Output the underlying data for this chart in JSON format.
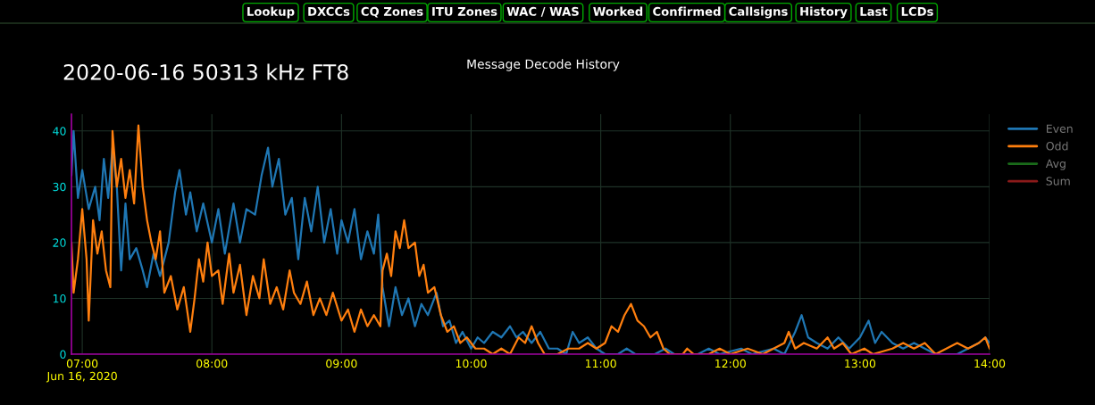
{
  "chart_data": {
    "type": "line",
    "title": "Message Decode History",
    "subtitle": "2020-06-16 50313 kHz FT8",
    "annotations": [
      "Lookup",
      "DXCCs",
      "CQ Zones",
      "ITU Zones",
      "WAC / WAS",
      "Worked",
      "Confirmed",
      "Callsigns",
      "History",
      "Last",
      "LCDs"
    ],
    "xlim": [
      "2020-06-16T06:55",
      "2020-06-16T14:00"
    ],
    "xticks": [
      {
        "value": "2020-06-16T07:00",
        "label": "07:00\nJun 16, 2020"
      },
      {
        "value": "2020-06-16T08:00",
        "label": "08:00"
      },
      {
        "value": "2020-06-16T09:00",
        "label": "09:00"
      },
      {
        "value": "2020-06-16T10:00",
        "label": "10:00"
      },
      {
        "value": "2020-06-16T11:00",
        "label": "11:00"
      },
      {
        "value": "2020-06-16T12:00",
        "label": "12:00"
      },
      {
        "value": "2020-06-16T13:00",
        "label": "13:00"
      },
      {
        "value": "2020-06-16T14:00",
        "label": "14:00"
      }
    ],
    "ylim": [
      0,
      43
    ],
    "yticks": [
      0,
      10,
      20,
      30,
      40
    ],
    "grid": true,
    "legend": "top right",
    "marker": "none",
    "line_style": "solid",
    "series": [
      {
        "name": "Even",
        "color": "#1f77b4",
        "x": [
          "2020-06-16T06:55",
          "2020-06-16T06:56",
          "2020-06-16T06:58",
          "2020-06-16T07:00",
          "2020-06-16T07:03",
          "2020-06-16T07:06",
          "2020-06-16T07:08",
          "2020-06-16T07:10",
          "2020-06-16T07:12",
          "2020-06-16T07:14",
          "2020-06-16T07:16",
          "2020-06-16T07:18",
          "2020-06-16T07:20",
          "2020-06-16T07:22",
          "2020-06-16T07:25",
          "2020-06-16T07:28",
          "2020-06-16T07:30",
          "2020-06-16T07:33",
          "2020-06-16T07:36",
          "2020-06-16T07:40",
          "2020-06-16T07:43",
          "2020-06-16T07:45",
          "2020-06-16T07:48",
          "2020-06-16T07:50",
          "2020-06-16T07:53",
          "2020-06-16T07:56",
          "2020-06-16T08:00",
          "2020-06-16T08:03",
          "2020-06-16T08:06",
          "2020-06-16T08:10",
          "2020-06-16T08:13",
          "2020-06-16T08:16",
          "2020-06-16T08:20",
          "2020-06-16T08:23",
          "2020-06-16T08:26",
          "2020-06-16T08:28",
          "2020-06-16T08:31",
          "2020-06-16T08:34",
          "2020-06-16T08:37",
          "2020-06-16T08:40",
          "2020-06-16T08:43",
          "2020-06-16T08:46",
          "2020-06-16T08:49",
          "2020-06-16T08:52",
          "2020-06-16T08:55",
          "2020-06-16T08:58",
          "2020-06-16T09:00",
          "2020-06-16T09:03",
          "2020-06-16T09:06",
          "2020-06-16T09:09",
          "2020-06-16T09:12",
          "2020-06-16T09:15",
          "2020-06-16T09:17",
          "2020-06-16T09:19",
          "2020-06-16T09:22",
          "2020-06-16T09:25",
          "2020-06-16T09:28",
          "2020-06-16T09:31",
          "2020-06-16T09:34",
          "2020-06-16T09:37",
          "2020-06-16T09:40",
          "2020-06-16T09:44",
          "2020-06-16T09:47",
          "2020-06-16T09:50",
          "2020-06-16T09:53",
          "2020-06-16T09:56",
          "2020-06-16T10:00",
          "2020-06-16T10:03",
          "2020-06-16T10:06",
          "2020-06-16T10:10",
          "2020-06-16T10:14",
          "2020-06-16T10:18",
          "2020-06-16T10:21",
          "2020-06-16T10:24",
          "2020-06-16T10:28",
          "2020-06-16T10:32",
          "2020-06-16T10:36",
          "2020-06-16T10:40",
          "2020-06-16T10:44",
          "2020-06-16T10:47",
          "2020-06-16T10:50",
          "2020-06-16T10:54",
          "2020-06-16T10:58",
          "2020-06-16T11:02",
          "2020-06-16T11:08",
          "2020-06-16T11:12",
          "2020-06-16T11:16",
          "2020-06-16T11:25",
          "2020-06-16T11:30",
          "2020-06-16T11:34",
          "2020-06-16T11:45",
          "2020-06-16T11:50",
          "2020-06-16T11:55",
          "2020-06-16T12:05",
          "2020-06-16T12:10",
          "2020-06-16T12:20",
          "2020-06-16T12:25",
          "2020-06-16T12:30",
          "2020-06-16T12:33",
          "2020-06-16T12:36",
          "2020-06-16T12:40",
          "2020-06-16T12:45",
          "2020-06-16T12:50",
          "2020-06-16T12:55",
          "2020-06-16T13:00",
          "2020-06-16T13:04",
          "2020-06-16T13:07",
          "2020-06-16T13:10",
          "2020-06-16T13:15",
          "2020-06-16T13:20",
          "2020-06-16T13:25",
          "2020-06-16T13:30",
          "2020-06-16T13:35",
          "2020-06-16T13:45",
          "2020-06-16T13:50",
          "2020-06-16T13:55",
          "2020-06-16T13:58",
          "2020-06-16T14:00"
        ],
        "values": [
          32,
          40,
          28,
          33,
          26,
          30,
          24,
          35,
          28,
          37,
          30,
          15,
          27,
          17,
          19,
          15,
          12,
          18,
          14,
          20,
          29,
          33,
          25,
          29,
          22,
          27,
          20,
          26,
          18,
          27,
          20,
          26,
          25,
          32,
          37,
          30,
          35,
          25,
          28,
          17,
          28,
          22,
          30,
          20,
          26,
          18,
          24,
          20,
          26,
          17,
          22,
          18,
          25,
          12,
          5,
          12,
          7,
          10,
          5,
          9,
          7,
          11,
          5,
          6,
          2,
          4,
          1,
          3,
          2,
          4,
          3,
          5,
          3,
          4,
          2,
          4,
          1,
          1,
          0,
          4,
          2,
          3,
          1,
          0,
          0,
          1,
          0,
          0,
          1,
          0,
          0,
          1,
          0,
          1,
          0,
          1,
          0,
          4,
          7,
          3,
          2,
          1,
          3,
          1,
          3,
          6,
          2,
          4,
          2,
          1,
          2,
          1,
          0,
          0,
          1,
          2,
          3,
          2
        ]
      },
      {
        "name": "Odd",
        "color": "#ff7f0e",
        "x": [
          "2020-06-16T06:55",
          "2020-06-16T06:56",
          "2020-06-16T06:58",
          "2020-06-16T07:00",
          "2020-06-16T07:02",
          "2020-06-16T07:03",
          "2020-06-16T07:05",
          "2020-06-16T07:07",
          "2020-06-16T07:09",
          "2020-06-16T07:11",
          "2020-06-16T07:13",
          "2020-06-16T07:14",
          "2020-06-16T07:16",
          "2020-06-16T07:18",
          "2020-06-16T07:20",
          "2020-06-16T07:22",
          "2020-06-16T07:24",
          "2020-06-16T07:26",
          "2020-06-16T07:28",
          "2020-06-16T07:30",
          "2020-06-16T07:32",
          "2020-06-16T07:34",
          "2020-06-16T07:36",
          "2020-06-16T07:38",
          "2020-06-16T07:41",
          "2020-06-16T07:44",
          "2020-06-16T07:47",
          "2020-06-16T07:50",
          "2020-06-16T07:52",
          "2020-06-16T07:54",
          "2020-06-16T07:56",
          "2020-06-16T07:58",
          "2020-06-16T08:00",
          "2020-06-16T08:03",
          "2020-06-16T08:05",
          "2020-06-16T08:08",
          "2020-06-16T08:10",
          "2020-06-16T08:13",
          "2020-06-16T08:16",
          "2020-06-16T08:19",
          "2020-06-16T08:22",
          "2020-06-16T08:24",
          "2020-06-16T08:27",
          "2020-06-16T08:30",
          "2020-06-16T08:33",
          "2020-06-16T08:36",
          "2020-06-16T08:38",
          "2020-06-16T08:41",
          "2020-06-16T08:44",
          "2020-06-16T08:47",
          "2020-06-16T08:50",
          "2020-06-16T08:53",
          "2020-06-16T08:56",
          "2020-06-16T09:00",
          "2020-06-16T09:03",
          "2020-06-16T09:06",
          "2020-06-16T09:09",
          "2020-06-16T09:12",
          "2020-06-16T09:15",
          "2020-06-16T09:18",
          "2020-06-16T09:19",
          "2020-06-16T09:21",
          "2020-06-16T09:23",
          "2020-06-16T09:25",
          "2020-06-16T09:27",
          "2020-06-16T09:29",
          "2020-06-16T09:31",
          "2020-06-16T09:34",
          "2020-06-16T09:36",
          "2020-06-16T09:38",
          "2020-06-16T09:40",
          "2020-06-16T09:43",
          "2020-06-16T09:46",
          "2020-06-16T09:49",
          "2020-06-16T09:52",
          "2020-06-16T09:55",
          "2020-06-16T09:58",
          "2020-06-16T10:02",
          "2020-06-16T10:06",
          "2020-06-16T10:10",
          "2020-06-16T10:14",
          "2020-06-16T10:18",
          "2020-06-16T10:22",
          "2020-06-16T10:25",
          "2020-06-16T10:28",
          "2020-06-16T10:31",
          "2020-06-16T10:34",
          "2020-06-16T10:40",
          "2020-06-16T10:45",
          "2020-06-16T10:50",
          "2020-06-16T10:54",
          "2020-06-16T10:58",
          "2020-06-16T11:02",
          "2020-06-16T11:05",
          "2020-06-16T11:08",
          "2020-06-16T11:11",
          "2020-06-16T11:14",
          "2020-06-16T11:17",
          "2020-06-16T11:20",
          "2020-06-16T11:23",
          "2020-06-16T11:26",
          "2020-06-16T11:29",
          "2020-06-16T11:32",
          "2020-06-16T11:38",
          "2020-06-16T11:40",
          "2020-06-16T11:43",
          "2020-06-16T11:50",
          "2020-06-16T11:55",
          "2020-06-16T12:00",
          "2020-06-16T12:08",
          "2020-06-16T12:15",
          "2020-06-16T12:20",
          "2020-06-16T12:25",
          "2020-06-16T12:27",
          "2020-06-16T12:30",
          "2020-06-16T12:34",
          "2020-06-16T12:40",
          "2020-06-16T12:45",
          "2020-06-16T12:48",
          "2020-06-16T12:52",
          "2020-06-16T12:56",
          "2020-06-16T13:02",
          "2020-06-16T13:06",
          "2020-06-16T13:15",
          "2020-06-16T13:20",
          "2020-06-16T13:25",
          "2020-06-16T13:30",
          "2020-06-16T13:35",
          "2020-06-16T13:40",
          "2020-06-16T13:45",
          "2020-06-16T13:50",
          "2020-06-16T13:55",
          "2020-06-16T13:58",
          "2020-06-16T14:00"
        ],
        "values": [
          20,
          11,
          17,
          26,
          17,
          6,
          24,
          18,
          22,
          15,
          12,
          40,
          30,
          35,
          28,
          33,
          27,
          41,
          30,
          24,
          20,
          17,
          22,
          11,
          14,
          8,
          12,
          4,
          10,
          17,
          13,
          20,
          14,
          15,
          9,
          18,
          11,
          16,
          7,
          14,
          10,
          17,
          9,
          12,
          8,
          15,
          11,
          9,
          13,
          7,
          10,
          7,
          11,
          6,
          8,
          4,
          8,
          5,
          7,
          5,
          15,
          18,
          14,
          22,
          19,
          24,
          19,
          20,
          14,
          16,
          11,
          12,
          7,
          4,
          5,
          2,
          3,
          1,
          1,
          0,
          1,
          0,
          3,
          2,
          5,
          2,
          0,
          0,
          1,
          1,
          2,
          1,
          2,
          5,
          4,
          7,
          9,
          6,
          5,
          3,
          4,
          1,
          0,
          0,
          1,
          0,
          0,
          1,
          0,
          1,
          0,
          1,
          2,
          4,
          1,
          2,
          1,
          3,
          1,
          2,
          0,
          1,
          0,
          1,
          2,
          1,
          2,
          0,
          1,
          2,
          1,
          2,
          3,
          1
        ]
      },
      {
        "name": "Avg",
        "color": "#1a6b1a"
      },
      {
        "name": "Sum",
        "color": "#8b1a1a"
      }
    ]
  }
}
